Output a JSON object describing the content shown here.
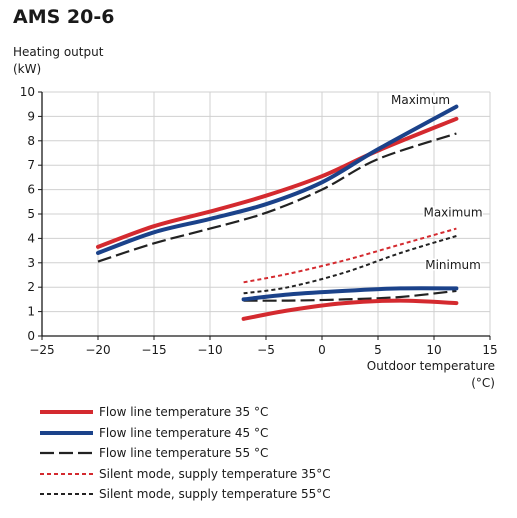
{
  "chart_data": {
    "type": "line",
    "title": "AMS 20-6",
    "ylabel": [
      "Heating output",
      "(kW)"
    ],
    "xlabel": [
      "Outdoor temperature",
      "(°C)"
    ],
    "xlim": [
      -25,
      15
    ],
    "ylim": [
      0,
      10
    ],
    "xticks": [
      -25,
      -20,
      -15,
      -10,
      -5,
      0,
      5,
      10,
      15
    ],
    "yticks": [
      0,
      1,
      2,
      3,
      4,
      5,
      6,
      7,
      8,
      9,
      10
    ],
    "grid": true,
    "legend_position": "bottom",
    "series": [
      {
        "name": "Flow line temperature 35 °C",
        "color": "#d42a2f",
        "style": "solid",
        "group": "maximum",
        "points": [
          [
            -20,
            3.65
          ],
          [
            -15,
            4.5
          ],
          [
            -10,
            5.1
          ],
          [
            -5,
            5.75
          ],
          [
            0,
            6.55
          ],
          [
            5,
            7.6
          ],
          [
            12,
            8.9
          ]
        ]
      },
      {
        "name": "Flow line temperature 45 °C",
        "color": "#1b428a",
        "style": "solid",
        "group": "maximum",
        "points": [
          [
            -20,
            3.4
          ],
          [
            -15,
            4.25
          ],
          [
            -10,
            4.8
          ],
          [
            -5,
            5.4
          ],
          [
            0,
            6.3
          ],
          [
            5,
            7.65
          ],
          [
            12,
            9.4
          ]
        ]
      },
      {
        "name": "Flow line temperature 55 °C",
        "color": "#222222",
        "style": "dashed",
        "group": "maximum",
        "points": [
          [
            -20,
            3.05
          ],
          [
            -15,
            3.8
          ],
          [
            -10,
            4.4
          ],
          [
            -5,
            5.05
          ],
          [
            0,
            6.0
          ],
          [
            5,
            7.25
          ],
          [
            12,
            8.3
          ]
        ]
      },
      {
        "name": "Flow line temperature 35 °C",
        "color": "#d42a2f",
        "style": "solid",
        "group": "minimum",
        "points": [
          [
            -7,
            0.7
          ],
          [
            -3,
            1.05
          ],
          [
            2,
            1.35
          ],
          [
            7,
            1.45
          ],
          [
            12,
            1.35
          ]
        ]
      },
      {
        "name": "Flow line temperature 45 °C",
        "color": "#1b428a",
        "style": "solid",
        "group": "minimum",
        "points": [
          [
            -7,
            1.5
          ],
          [
            -3,
            1.7
          ],
          [
            2,
            1.85
          ],
          [
            7,
            1.95
          ],
          [
            12,
            1.95
          ]
        ]
      },
      {
        "name": "Flow line temperature 55 °C",
        "color": "#222222",
        "style": "dashed",
        "group": "minimum",
        "points": [
          [
            -7,
            1.45
          ],
          [
            -3,
            1.45
          ],
          [
            2,
            1.5
          ],
          [
            7,
            1.6
          ],
          [
            12,
            1.85
          ]
        ]
      },
      {
        "name": "Silent mode, supply temperature 35°C",
        "color": "#d42a2f",
        "style": "dotted",
        "group": "silent",
        "points": [
          [
            -7,
            2.2
          ],
          [
            -3,
            2.55
          ],
          [
            2,
            3.1
          ],
          [
            7,
            3.75
          ],
          [
            12,
            4.4
          ]
        ]
      },
      {
        "name": "Silent mode, supply temperature 55°C",
        "color": "#222222",
        "style": "dotted",
        "group": "silent",
        "points": [
          [
            -7,
            1.75
          ],
          [
            -3,
            2.0
          ],
          [
            2,
            2.6
          ],
          [
            7,
            3.4
          ],
          [
            12,
            4.1
          ]
        ]
      }
    ],
    "annotations": [
      {
        "text": "Maximum",
        "x": 8.8,
        "y": 9.5
      },
      {
        "text": "Maximum",
        "x": 11.7,
        "y": 4.9
      },
      {
        "text": "Minimum",
        "x": 11.7,
        "y": 2.75
      }
    ],
    "legend": [
      {
        "label": "Flow line temperature 35 °C",
        "color": "#d42a2f",
        "style": "solid"
      },
      {
        "label": "Flow line temperature 45 °C",
        "color": "#1b428a",
        "style": "solid"
      },
      {
        "label": "Flow line temperature 55 °C",
        "color": "#222222",
        "style": "dashed"
      },
      {
        "label": "Silent mode, supply temperature 35°C",
        "color": "#d42a2f",
        "style": "dotted"
      },
      {
        "label": "Silent mode, supply temperature 55°C",
        "color": "#222222",
        "style": "dotted"
      }
    ]
  }
}
